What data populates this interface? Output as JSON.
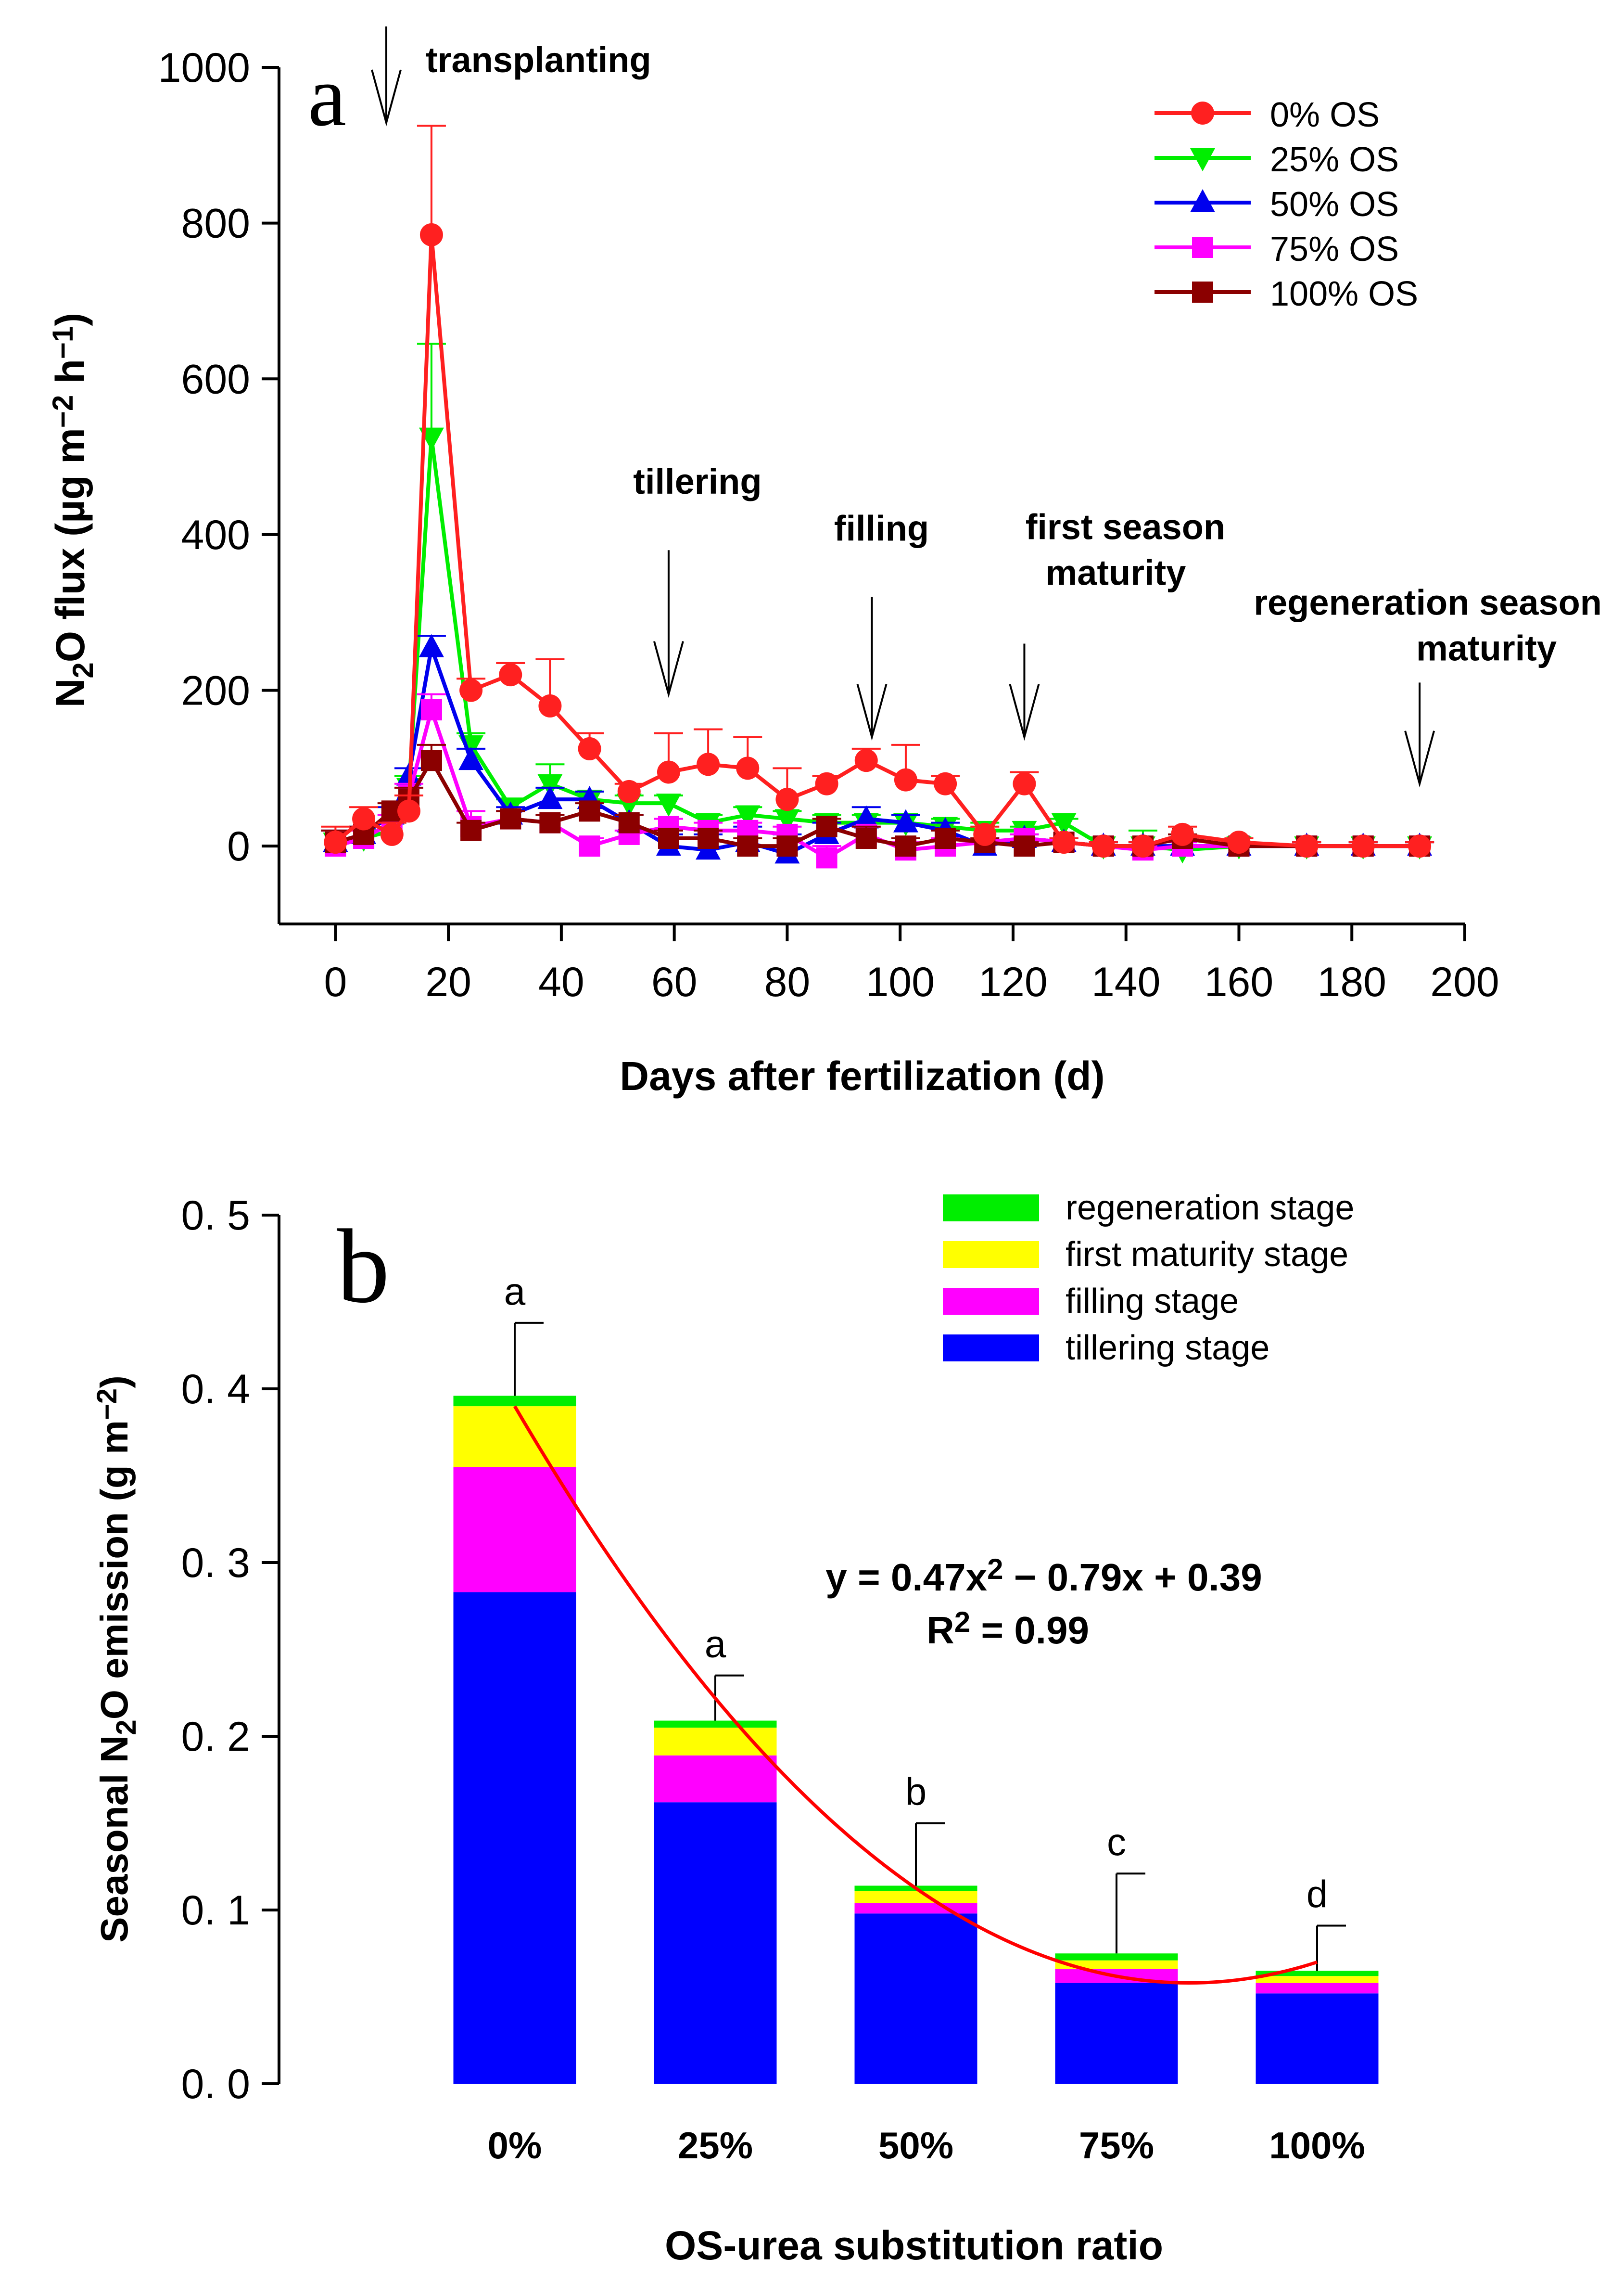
{
  "chart_data": [
    {
      "panel": "a",
      "type": "line",
      "title": "",
      "xlabel": "Days after fertilization (d)",
      "ylabel": {
        "pre": "N",
        "sub": "2",
        "mid": "O flux (µg m",
        "sup1": "−2",
        "mid2": " h",
        "sup2": "−1",
        "post": ")"
      },
      "xlim": [
        -10,
        200
      ],
      "ylim": [
        -100,
        1000
      ],
      "xticks": [
        0,
        20,
        40,
        60,
        80,
        100,
        120,
        140,
        160,
        180,
        200
      ],
      "yticks": [
        0,
        200,
        400,
        600,
        800,
        1000
      ],
      "xtick_labels": [
        "0",
        "20",
        "40",
        "60",
        "80",
        "100",
        "120",
        "140",
        "160",
        "180",
        "200"
      ],
      "ytick_labels": [
        "0",
        "200",
        "400",
        "600",
        "800",
        "1000"
      ],
      "legend_position": "top-right",
      "x": [
        0,
        5,
        10,
        13,
        17,
        24,
        31,
        38,
        45,
        52,
        59,
        66,
        73,
        80,
        87,
        94,
        101,
        108,
        115,
        122,
        129,
        136,
        143,
        150,
        160,
        172,
        182,
        192
      ],
      "series": [
        {
          "name": "0% OS",
          "color": "#ff2020",
          "marker": "circle",
          "values": [
            5,
            35,
            15,
            45,
            785,
            200,
            220,
            180,
            125,
            70,
            95,
            105,
            100,
            60,
            80,
            110,
            85,
            80,
            15,
            80,
            5,
            0,
            0,
            15,
            5,
            0,
            0,
            0
          ],
          "errors": [
            20,
            15,
            15,
            20,
            140,
            15,
            15,
            60,
            20,
            10,
            50,
            45,
            40,
            40,
            10,
            15,
            45,
            10,
            10,
            15,
            5,
            5,
            5,
            10,
            5,
            5,
            5,
            5
          ]
        },
        {
          "name": "25% OS",
          "color": "#00ee00",
          "marker": "triangle-down",
          "values": [
            5,
            10,
            20,
            75,
            525,
            130,
            50,
            80,
            60,
            55,
            55,
            30,
            40,
            35,
            30,
            30,
            30,
            25,
            20,
            20,
            30,
            0,
            0,
            -5,
            0,
            0,
            0,
            0
          ],
          "errors": [
            15,
            10,
            10,
            15,
            120,
            15,
            10,
            25,
            10,
            10,
            10,
            10,
            10,
            10,
            10,
            10,
            10,
            10,
            10,
            5,
            5,
            5,
            20,
            5,
            5,
            5,
            5,
            5
          ]
        },
        {
          "name": "50% OS",
          "color": "#0000ee",
          "marker": "triangle-up",
          "values": [
            5,
            15,
            40,
            90,
            255,
            110,
            40,
            60,
            60,
            30,
            0,
            -5,
            5,
            -10,
            15,
            35,
            30,
            20,
            0,
            10,
            5,
            0,
            0,
            0,
            0,
            0,
            0,
            0
          ],
          "errors": [
            15,
            10,
            10,
            10,
            15,
            15,
            10,
            15,
            10,
            10,
            15,
            20,
            20,
            25,
            15,
            15,
            10,
            10,
            5,
            5,
            5,
            5,
            5,
            5,
            5,
            5,
            5,
            5
          ]
        },
        {
          "name": "75% OS",
          "color": "#ff00ff",
          "marker": "square",
          "values": [
            0,
            10,
            30,
            65,
            175,
            25,
            35,
            30,
            0,
            15,
            25,
            20,
            20,
            15,
            -15,
            15,
            -5,
            0,
            5,
            10,
            5,
            0,
            -5,
            0,
            0,
            0,
            0,
            0
          ],
          "errors": [
            20,
            10,
            10,
            15,
            20,
            20,
            10,
            10,
            10,
            5,
            10,
            10,
            10,
            10,
            15,
            10,
            10,
            10,
            5,
            5,
            5,
            5,
            5,
            5,
            5,
            5,
            5,
            5
          ]
        },
        {
          "name": "100% OS",
          "color": "#8b0000",
          "marker": "square",
          "values": [
            5,
            15,
            45,
            60,
            110,
            20,
            35,
            30,
            45,
            30,
            10,
            10,
            0,
            0,
            25,
            10,
            0,
            10,
            5,
            0,
            5,
            0,
            0,
            10,
            0,
            0,
            0,
            0
          ],
          "errors": [
            15,
            10,
            10,
            15,
            20,
            10,
            10,
            10,
            10,
            10,
            10,
            10,
            10,
            10,
            10,
            15,
            10,
            10,
            5,
            5,
            5,
            5,
            5,
            5,
            5,
            5,
            5,
            5
          ]
        }
      ],
      "annotations": [
        {
          "text": "transplanting",
          "lines": [
            "transplanting"
          ],
          "x": 9,
          "arrow_from": 1000,
          "arrow_to": 930,
          "label_y": 1000,
          "anchor": "start"
        },
        {
          "text": "tillering",
          "lines": [
            "tillering"
          ],
          "x": 59,
          "arrow_from": 380,
          "arrow_to": 195,
          "label_y": 440,
          "anchor": "middle"
        },
        {
          "text": "filling",
          "lines": [
            "filling"
          ],
          "x": 95,
          "arrow_from": 320,
          "arrow_to": 140,
          "label_y": 380,
          "anchor": "middle"
        },
        {
          "text": "first season maturity",
          "lines": [
            "first season",
            "maturity"
          ],
          "x": 122,
          "arrow_from": 260,
          "arrow_to": 140,
          "label_y": 320,
          "anchor": "middle"
        },
        {
          "text": "regeneration season maturity",
          "lines": [
            "regeneration season",
            "maturity"
          ],
          "x": 192,
          "arrow_from": 210,
          "arrow_to": 80,
          "label_y": 260,
          "anchor": "end"
        }
      ],
      "panel_label": "a"
    },
    {
      "panel": "b",
      "type": "bar",
      "stacked": true,
      "title": "",
      "xlabel": "OS-urea substitution ratio",
      "ylabel": {
        "pre": "Seasonal N",
        "sub": "2",
        "mid": "O emission (g m",
        "sup1": "−2",
        "post": ")"
      },
      "categories": [
        "0%",
        "25%",
        "50%",
        "75%",
        "100%"
      ],
      "ylim": [
        0,
        0.5
      ],
      "yticks": [
        0,
        0.1,
        0.2,
        0.3,
        0.4,
        0.5
      ],
      "ytick_labels": [
        "0. 0",
        "0. 1",
        "0. 2",
        "0. 3",
        "0. 4",
        "0. 5"
      ],
      "legend_position": "top-right",
      "series": [
        {
          "name": "tillering stage",
          "color": "#0000ff",
          "values": [
            0.283,
            0.162,
            0.098,
            0.058,
            0.052
          ]
        },
        {
          "name": "filling stage",
          "color": "#ff00ff",
          "values": [
            0.072,
            0.027,
            0.006,
            0.008,
            0.006
          ]
        },
        {
          "name": "first maturity stage",
          "color": "#ffff00",
          "values": [
            0.035,
            0.016,
            0.007,
            0.005,
            0.004
          ]
        },
        {
          "name": "regeneration stage",
          "color": "#00ee00",
          "values": [
            0.006,
            0.004,
            0.003,
            0.004,
            0.003
          ]
        }
      ],
      "totals": [
        0.396,
        0.209,
        0.114,
        0.075,
        0.065
      ],
      "errors": [
        0.042,
        0.026,
        0.036,
        0.046,
        0.026
      ],
      "significance": [
        "a",
        "a",
        "b",
        "c",
        "d"
      ],
      "fit": {
        "a": 0.47,
        "b": -0.79,
        "c": 0.39,
        "color": "#ff0000",
        "equation": {
          "pre": "y = 0.47x",
          "sup": "2",
          "post": " − 0.79x + 0.39"
        },
        "r2": {
          "pre": "R",
          "sup": "2",
          "post": " = 0.99"
        }
      },
      "panel_label": "b"
    }
  ]
}
